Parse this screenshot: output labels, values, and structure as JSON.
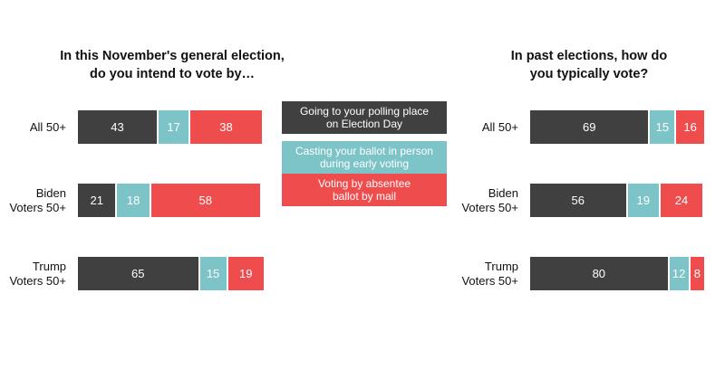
{
  "chart_data": [
    {
      "type": "bar",
      "orientation": "horizontal",
      "stacked": true,
      "title": "In this November's general election, do you intend to vote by…",
      "title_lines": [
        "In this November's general election,",
        "do you intend to vote by…"
      ],
      "categories": [
        "All 50+",
        "Biden Voters 50+",
        "Trump Voters 50+"
      ],
      "category_lines": [
        [
          "All 50+"
        ],
        [
          "Biden",
          "Voters 50+"
        ],
        [
          "Trump",
          "Voters 50+"
        ]
      ],
      "series": [
        {
          "name": "Going to your polling place on Election Day",
          "color": "#404040",
          "values": [
            43,
            21,
            65
          ]
        },
        {
          "name": "Casting your ballot in person during early voting",
          "color": "#7cc4c8",
          "values": [
            17,
            18,
            15
          ]
        },
        {
          "name": "Voting by absentee ballot by mail",
          "color": "#ef4d4d",
          "values": [
            38,
            58,
            19
          ]
        }
      ]
    },
    {
      "type": "bar",
      "orientation": "horizontal",
      "stacked": true,
      "title": "In past elections, how do you typically vote?",
      "title_lines": [
        "In past elections, how do",
        "you typically vote?"
      ],
      "categories": [
        "All 50+",
        "Biden Voters 50+",
        "Trump Voters 50+"
      ],
      "category_lines": [
        [
          "All 50+"
        ],
        [
          "Biden",
          "Voters 50+"
        ],
        [
          "Trump",
          "Voters 50+"
        ]
      ],
      "series": [
        {
          "name": "Going to your polling place on Election Day",
          "color": "#404040",
          "values": [
            69,
            56,
            80
          ]
        },
        {
          "name": "Casting your ballot in person during early voting",
          "color": "#7cc4c8",
          "values": [
            15,
            19,
            12
          ]
        },
        {
          "name": "Voting by absentee ballot by mail",
          "color": "#ef4d4d",
          "values": [
            16,
            24,
            8
          ]
        }
      ]
    }
  ],
  "legend": {
    "items": [
      {
        "lines": [
          "Going to your polling place",
          "on Election Day"
        ],
        "color": "#404040"
      },
      {
        "lines": [
          "Casting your ballot in person",
          "during early voting"
        ],
        "color": "#7cc4c8"
      },
      {
        "lines": [
          "Voting by absentee",
          "ballot by mail"
        ],
        "color": "#ef4d4d"
      }
    ]
  }
}
